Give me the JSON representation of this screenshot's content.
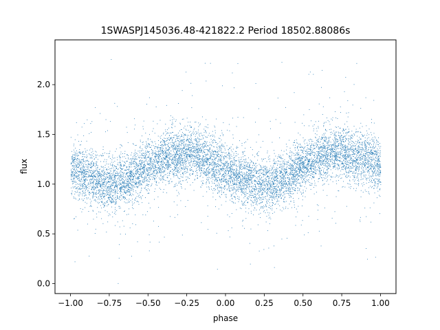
{
  "chart_data": {
    "type": "scatter",
    "title": "1SWASPJ145036.48-421822.2 Period 18502.88086s",
    "xlabel": "phase",
    "ylabel": "flux",
    "xlim": [
      -1.1,
      1.1
    ],
    "ylim": [
      -0.1,
      2.45
    ],
    "xticks": [
      -1.0,
      -0.75,
      -0.5,
      -0.25,
      0.0,
      0.25,
      0.5,
      0.75,
      1.0
    ],
    "xtick_labels": [
      "−1.00",
      "−0.75",
      "−0.50",
      "−0.25",
      "0.00",
      "0.25",
      "0.50",
      "0.75",
      "1.00"
    ],
    "yticks": [
      0.0,
      0.5,
      1.0,
      1.5,
      2.0
    ],
    "ytick_labels": [
      "0.0",
      "0.5",
      "1.0",
      "1.5",
      "2.0"
    ],
    "grid": false,
    "marker_color": "#1f77b4",
    "series": [
      {
        "x": [
          -1.0,
          -0.9,
          -0.8,
          -0.75,
          -0.7,
          -0.6,
          -0.5,
          -0.4,
          -0.3,
          -0.25,
          -0.2,
          -0.1,
          0.0,
          0.1,
          0.2,
          0.25,
          0.3,
          0.4,
          0.5,
          0.6,
          0.7,
          0.75,
          0.8,
          0.9,
          1.0
        ],
        "y": [
          1.18,
          1.08,
          1.0,
          0.99,
          1.0,
          1.08,
          1.18,
          1.27,
          1.31,
          1.32,
          1.3,
          1.24,
          1.15,
          1.06,
          1.0,
          0.99,
          1.0,
          1.08,
          1.18,
          1.27,
          1.31,
          1.32,
          1.3,
          1.25,
          1.18
        ]
      }
    ]
  }
}
